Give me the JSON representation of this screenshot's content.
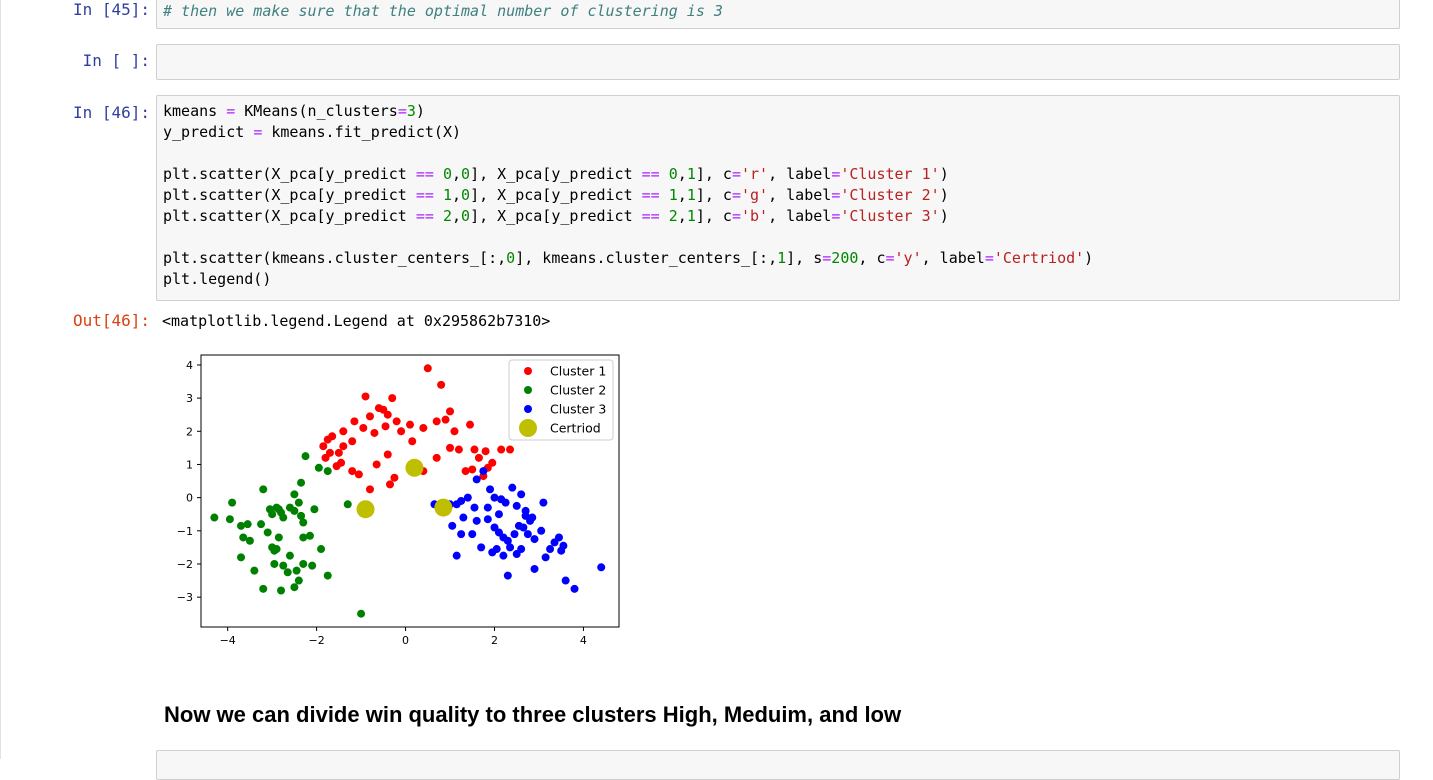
{
  "cells": {
    "c45": {
      "prompt": "In [45]:",
      "comment": "# then we make sure that the optimal number of clustering is 3"
    },
    "empty": {
      "prompt": "In [ ]:"
    },
    "c46": {
      "prompt": "In [46]:",
      "output_prompt": "Out[46]:",
      "output_text": "<matplotlib.legend.Legend at 0x295862b7310>"
    }
  },
  "markdown": {
    "heading": "Now we can divide win quality to three clusters High, Meduim, and low"
  },
  "chart_data": {
    "type": "scatter",
    "xlim": [
      -4.6,
      4.8
    ],
    "ylim": [
      -3.9,
      4.3
    ],
    "xticks": [
      -4,
      -2,
      0,
      2,
      4
    ],
    "yticks": [
      -3,
      -2,
      -1,
      0,
      1,
      2,
      3,
      4
    ],
    "legend_position": "top-right",
    "series": [
      {
        "name": "Cluster 1",
        "color": "#ff0000",
        "points": [
          [
            0.5,
            3.9
          ],
          [
            0.8,
            3.4
          ],
          [
            -0.9,
            3.05
          ],
          [
            -0.3,
            3.0
          ],
          [
            -0.6,
            2.7
          ],
          [
            -0.5,
            2.65
          ],
          [
            -0.4,
            2.5
          ],
          [
            -0.8,
            2.45
          ],
          [
            -0.2,
            2.3
          ],
          [
            -0.45,
            2.15
          ],
          [
            0.1,
            2.2
          ],
          [
            0.4,
            2.1
          ],
          [
            -0.1,
            2.0
          ],
          [
            0.7,
            2.3
          ],
          [
            1.0,
            2.6
          ],
          [
            1.1,
            2.0
          ],
          [
            1.45,
            2.2
          ],
          [
            0.9,
            2.35
          ],
          [
            -0.7,
            1.95
          ],
          [
            -0.95,
            2.1
          ],
          [
            -1.2,
            1.7
          ],
          [
            -1.15,
            2.3
          ],
          [
            -1.4,
            2.0
          ],
          [
            -1.65,
            1.85
          ],
          [
            -1.75,
            1.75
          ],
          [
            -1.85,
            1.55
          ],
          [
            -1.4,
            1.55
          ],
          [
            -1.5,
            1.35
          ],
          [
            -1.7,
            1.35
          ],
          [
            -1.8,
            1.2
          ],
          [
            -1.45,
            1.05
          ],
          [
            -1.55,
            0.95
          ],
          [
            -1.2,
            0.8
          ],
          [
            -1.05,
            0.7
          ],
          [
            -0.65,
            1.0
          ],
          [
            -0.4,
            1.3
          ],
          [
            -0.25,
            0.6
          ],
          [
            -0.35,
            0.4
          ],
          [
            -0.8,
            0.25
          ],
          [
            0.4,
            0.8
          ],
          [
            1.0,
            1.5
          ],
          [
            1.2,
            1.45
          ],
          [
            1.55,
            1.45
          ],
          [
            1.8,
            1.4
          ],
          [
            2.15,
            1.45
          ],
          [
            2.35,
            1.45
          ],
          [
            2.45,
            2.0
          ],
          [
            2.7,
            1.95
          ],
          [
            2.65,
            2.4
          ],
          [
            1.35,
            0.8
          ],
          [
            1.5,
            0.85
          ],
          [
            1.85,
            0.9
          ],
          [
            1.65,
            1.2
          ],
          [
            1.95,
            1.05
          ],
          [
            1.75,
            0.65
          ],
          [
            0.15,
            1.7
          ],
          [
            0.7,
            1.2
          ]
        ]
      },
      {
        "name": "Cluster 2",
        "color": "#008000",
        "points": [
          [
            -4.3,
            -0.6
          ],
          [
            -3.95,
            -0.65
          ],
          [
            -3.9,
            -0.15
          ],
          [
            -3.7,
            -0.85
          ],
          [
            -3.55,
            -0.8
          ],
          [
            -3.65,
            -1.2
          ],
          [
            -3.5,
            -1.3
          ],
          [
            -3.7,
            -1.8
          ],
          [
            -3.4,
            -2.2
          ],
          [
            -3.2,
            -2.75
          ],
          [
            -3.2,
            0.25
          ],
          [
            -3.05,
            -0.35
          ],
          [
            -3.0,
            -0.5
          ],
          [
            -2.9,
            -0.3
          ],
          [
            -2.8,
            -0.45
          ],
          [
            -2.75,
            -0.6
          ],
          [
            -2.85,
            -0.35
          ],
          [
            -2.6,
            -0.3
          ],
          [
            -2.5,
            -0.4
          ],
          [
            -2.35,
            -0.55
          ],
          [
            -2.3,
            -0.75
          ],
          [
            -2.4,
            -0.15
          ],
          [
            -2.5,
            0.1
          ],
          [
            -2.35,
            0.45
          ],
          [
            -2.25,
            1.25
          ],
          [
            -1.95,
            0.9
          ],
          [
            -2.15,
            -1.15
          ],
          [
            -2.3,
            -1.2
          ],
          [
            -2.05,
            -0.35
          ],
          [
            -2.1,
            -2.05
          ],
          [
            -2.3,
            -2.0
          ],
          [
            -2.45,
            -2.2
          ],
          [
            -2.4,
            -2.5
          ],
          [
            -2.5,
            -2.7
          ],
          [
            -2.65,
            -2.25
          ],
          [
            -2.75,
            -2.05
          ],
          [
            -2.95,
            -2.0
          ],
          [
            -3.0,
            -1.5
          ],
          [
            -2.9,
            -1.55
          ],
          [
            -2.6,
            -1.75
          ],
          [
            -2.85,
            -1.2
          ],
          [
            -3.1,
            -1.05
          ],
          [
            -2.8,
            -2.8
          ],
          [
            -1.75,
            -2.35
          ],
          [
            -1.9,
            -1.55
          ],
          [
            -1.3,
            -0.2
          ],
          [
            -1.0,
            -3.5
          ],
          [
            -1.75,
            0.8
          ],
          [
            -2.95,
            -1.6
          ],
          [
            -3.25,
            -0.8
          ]
        ]
      },
      {
        "name": "Cluster 3",
        "color": "#0000ff",
        "points": [
          [
            0.65,
            -0.2
          ],
          [
            0.85,
            -0.3
          ],
          [
            1.0,
            -0.2
          ],
          [
            1.15,
            -0.2
          ],
          [
            1.25,
            -0.1
          ],
          [
            1.4,
            0.0
          ],
          [
            1.55,
            -0.3
          ],
          [
            1.6,
            0.55
          ],
          [
            1.75,
            0.8
          ],
          [
            1.9,
            0.25
          ],
          [
            2.0,
            0.0
          ],
          [
            2.15,
            -0.05
          ],
          [
            2.25,
            -0.15
          ],
          [
            2.4,
            0.3
          ],
          [
            2.5,
            -0.25
          ],
          [
            2.6,
            0.1
          ],
          [
            2.7,
            -0.4
          ],
          [
            2.85,
            -0.6
          ],
          [
            3.1,
            -0.15
          ],
          [
            1.3,
            -0.6
          ],
          [
            1.6,
            -0.7
          ],
          [
            1.85,
            -0.65
          ],
          [
            2.0,
            -0.9
          ],
          [
            2.1,
            -1.05
          ],
          [
            2.2,
            -1.2
          ],
          [
            2.3,
            -1.3
          ],
          [
            2.35,
            -1.5
          ],
          [
            2.45,
            -1.1
          ],
          [
            2.55,
            -0.85
          ],
          [
            2.65,
            -0.9
          ],
          [
            2.75,
            -1.1
          ],
          [
            2.8,
            -0.7
          ],
          [
            2.9,
            -1.25
          ],
          [
            3.05,
            -1.0
          ],
          [
            3.15,
            -1.8
          ],
          [
            3.25,
            -1.55
          ],
          [
            3.35,
            -1.35
          ],
          [
            3.45,
            -1.2
          ],
          [
            3.5,
            -1.6
          ],
          [
            3.55,
            -1.45
          ],
          [
            3.6,
            -2.5
          ],
          [
            3.8,
            -2.75
          ],
          [
            4.4,
            -2.1
          ],
          [
            2.9,
            -2.15
          ],
          [
            2.6,
            -1.55
          ],
          [
            2.5,
            -1.7
          ],
          [
            2.3,
            -2.35
          ],
          [
            2.2,
            -1.75
          ],
          [
            2.05,
            -1.55
          ],
          [
            1.95,
            -1.65
          ],
          [
            1.7,
            -1.5
          ],
          [
            1.5,
            -1.1
          ],
          [
            1.25,
            -1.1
          ],
          [
            1.15,
            -1.75
          ],
          [
            1.05,
            -0.85
          ],
          [
            2.1,
            -0.5
          ],
          [
            2.7,
            -0.55
          ],
          [
            1.85,
            -0.3
          ]
        ]
      },
      {
        "name": "Certriod",
        "color": "#bfbf00",
        "points": [
          [
            -0.9,
            -0.35
          ],
          [
            0.2,
            0.9
          ],
          [
            0.85,
            -0.3
          ]
        ]
      }
    ]
  }
}
